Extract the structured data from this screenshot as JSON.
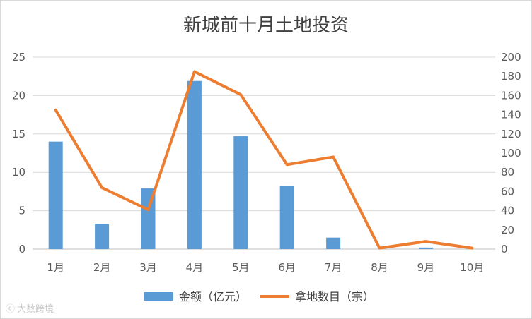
{
  "chart_data": {
    "type": "bar",
    "title": "新城前十月土地投资",
    "categories": [
      "1月",
      "2月",
      "3月",
      "4月",
      "5月",
      "6月",
      "7月",
      "8月",
      "9月",
      "10月"
    ],
    "series": [
      {
        "name": "金额（亿元）",
        "type": "bar",
        "axis": "left",
        "color": "#5B9BD5",
        "values": [
          14.0,
          3.3,
          7.9,
          21.9,
          14.7,
          8.2,
          1.5,
          0,
          0.2,
          0
        ]
      },
      {
        "name": "拿地数目（宗）",
        "type": "line",
        "axis": "right",
        "color": "#ED7D31",
        "values": [
          145,
          64,
          41,
          185,
          161,
          88,
          96,
          1,
          8,
          1
        ]
      }
    ],
    "y_left": {
      "min": 0,
      "max": 25,
      "ticks": [
        0,
        5,
        10,
        15,
        20,
        25
      ]
    },
    "y_right": {
      "min": 0,
      "max": 200,
      "ticks": [
        0,
        20,
        40,
        60,
        80,
        100,
        120,
        140,
        160,
        180,
        200
      ]
    },
    "grid": true,
    "legend_position": "bottom"
  },
  "watermark": "大数跨境"
}
